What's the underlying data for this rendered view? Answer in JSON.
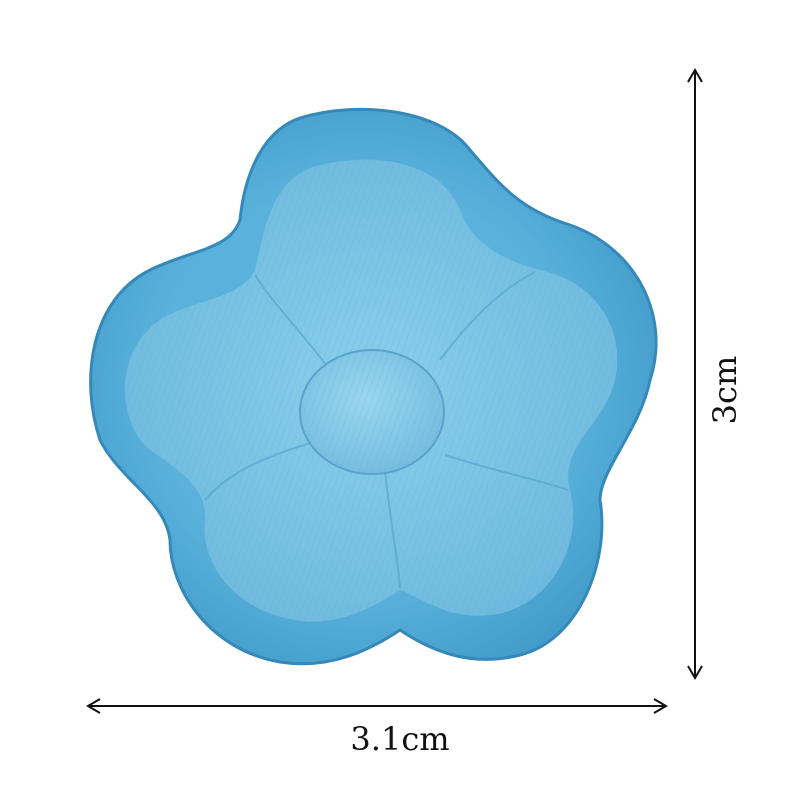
{
  "image": {
    "subject": "flower-patch",
    "colors": {
      "background": "#ffffff",
      "border_satin": "#4fa8d6",
      "border_dark": "#2f86b8",
      "petal_fill": "#7cc3e3",
      "petal_thread": "#5aa9cf",
      "center_fill": "#82c8e6",
      "dimension_line": "#111111"
    }
  },
  "dimensions": {
    "width_label": "3.1cm",
    "height_label": "3cm"
  }
}
